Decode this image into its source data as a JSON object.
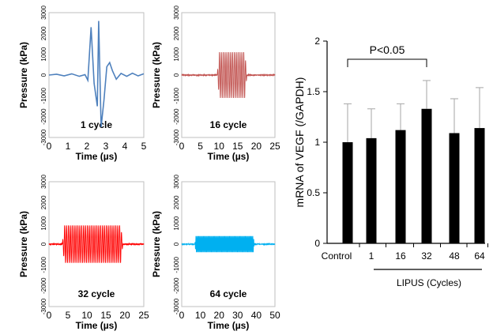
{
  "chart_data": [
    {
      "type": "line",
      "annotation": "1 cycle",
      "xlabel": "Time (µs)",
      "ylabel": "Pressure (kPa)",
      "xlim": [
        0,
        5
      ],
      "ylim": [
        -3000,
        3000
      ],
      "xticks": [
        "0",
        "1",
        "2",
        "3",
        "4",
        "5"
      ],
      "yticks": [
        "-3000",
        "-2000",
        "-1000",
        "0",
        "1000",
        "2000",
        "3000"
      ],
      "color": "#4f81bd",
      "waveform": {
        "kind": "single",
        "peak_max": 2600,
        "peak_min": -2500
      }
    },
    {
      "type": "line",
      "annotation": "16 cycle",
      "xlabel": "Time (µs)",
      "ylabel": "Pressure (kPa)",
      "xlim": [
        0,
        25
      ],
      "ylim": [
        -3000,
        3000
      ],
      "xticks": [
        "0",
        "5",
        "10",
        "15",
        "20",
        "25"
      ],
      "yticks": [
        "-3000",
        "-2000",
        "-1000",
        "0",
        "1000",
        "2000",
        "3000"
      ],
      "color": "#c0504d",
      "waveform": {
        "kind": "burst",
        "start": 9.5,
        "end": 17.5,
        "cycles": 16,
        "amplitude": 1100,
        "noise": 30
      }
    },
    {
      "type": "line",
      "annotation": "32 cycle",
      "xlabel": "Time (µs)",
      "ylabel": "Pressure (kPa)",
      "xlim": [
        0,
        25
      ],
      "ylim": [
        -3000,
        3000
      ],
      "xticks": [
        "0",
        "5",
        "10",
        "15",
        "20",
        "25"
      ],
      "yticks": [
        "-3000",
        "-2000",
        "-1000",
        "0",
        "1000",
        "2000",
        "3000"
      ],
      "color": "#ff0000",
      "waveform": {
        "kind": "burst",
        "start": 3.5,
        "end": 19.5,
        "cycles": 32,
        "amplitude": 900,
        "noise": 30
      }
    },
    {
      "type": "line",
      "annotation": "64 cycle",
      "xlabel": "Time (µs)",
      "ylabel": "Pressure (kPa)",
      "xlim": [
        0,
        50
      ],
      "ylim": [
        -3000,
        3000
      ],
      "xticks": [
        "0",
        "10",
        "20",
        "30",
        "40",
        "50"
      ],
      "yticks": [
        "-3000",
        "-2000",
        "-1000",
        "0",
        "1000",
        "2000",
        "3000"
      ],
      "color": "#00b0f0",
      "waveform": {
        "kind": "burst",
        "start": 7,
        "end": 39,
        "cycles": 64,
        "amplitude": 380,
        "noise": 20
      }
    },
    {
      "type": "bar",
      "categories": [
        "Control",
        "1",
        "16",
        "32",
        "48",
        "64"
      ],
      "values": [
        1.0,
        1.04,
        1.12,
        1.33,
        1.09,
        1.14
      ],
      "errors": [
        0.38,
        0.29,
        0.26,
        0.28,
        0.34,
        0.4
      ],
      "ylabel": "mRNA of VEGF  (/GAPDH)",
      "xlabel": "LIPUS (Cycles)",
      "ylim": [
        0,
        2
      ],
      "yticks": [
        "0",
        "0.5",
        "1",
        "1.5",
        "2"
      ],
      "annotation": "P<0.05",
      "bar_color": "#000000",
      "error_color": "#a6a6a6"
    }
  ]
}
